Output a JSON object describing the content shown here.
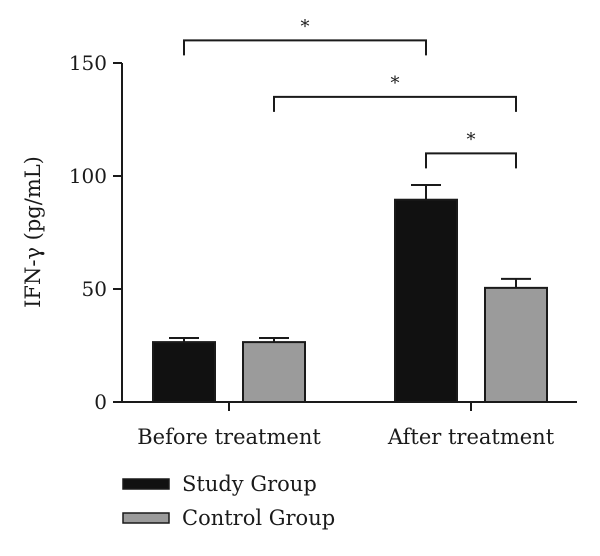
{
  "chart_data": {
    "type": "bar",
    "ylabel": "IFN-γ (pg/mL)",
    "ylim": [
      0,
      150
    ],
    "yticks": [
      0,
      50,
      100,
      150
    ],
    "categories": [
      "Before treatment",
      "After treatment"
    ],
    "series": [
      {
        "name": "Study Group",
        "values": [
          26.5,
          89.5
        ],
        "errors": [
          1.8,
          6.5
        ],
        "color": "#111111"
      },
      {
        "name": "Control Group",
        "values": [
          26.5,
          50.5
        ],
        "errors": [
          1.8,
          4.0
        ],
        "color": "#9b9b9b"
      }
    ],
    "significance": [
      {
        "from": [
          0,
          0
        ],
        "to": [
          1,
          0
        ],
        "label": "*",
        "level": 160
      },
      {
        "from": [
          0,
          1
        ],
        "to": [
          1,
          1
        ],
        "label": "*",
        "level": 135
      },
      {
        "from": [
          1,
          0
        ],
        "to": [
          1,
          1
        ],
        "label": "*",
        "level": 110
      }
    ],
    "legend_position": "bottom-left",
    "grid": false
  }
}
